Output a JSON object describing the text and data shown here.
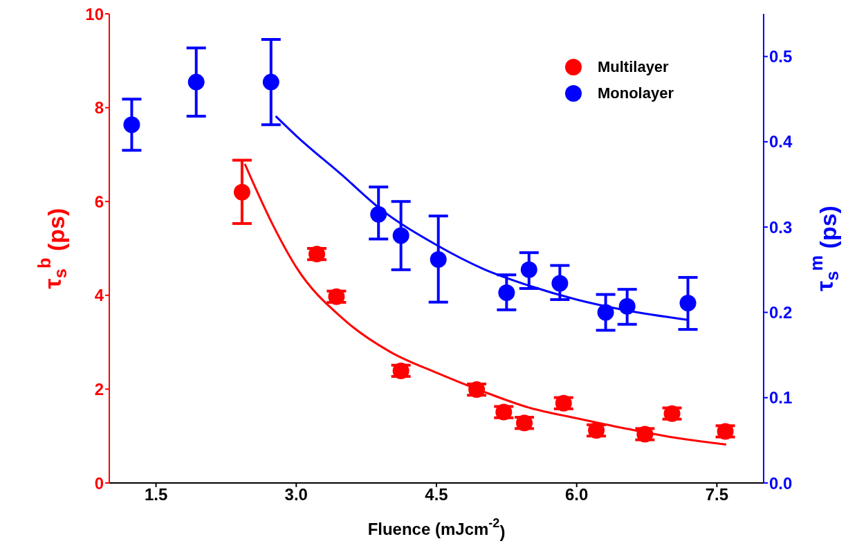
{
  "chart_data": {
    "type": "scatter",
    "xlabel": "Fluence  (mJcm$^{-2}$)",
    "ylabel": "τ$_{s}$$^{b}$ (ps)",
    "y2label": "τ$_{s}$$^{m}$ (ps)",
    "xlim": [
      1,
      8
    ],
    "xticks": [
      1.5,
      {
        "value": 3,
        "label": "3.0"
      },
      4.5,
      {
        "value": 6,
        "label": "6.0"
      },
      7.5
    ],
    "ylim": [
      0,
      10
    ],
    "yticks": [
      0,
      2,
      4,
      6,
      8,
      10
    ],
    "y2lim": [
      0,
      0.55
    ],
    "y2ticks": [
      {
        "value": 0,
        "label": "0.0"
      },
      0.1,
      0.2,
      0.3,
      0.4,
      0.5
    ],
    "legend": "top right",
    "grid": false,
    "series": [
      {
        "name": "Multilayer",
        "color": "#ff0000",
        "marker": "circle",
        "x": [
          2.42,
          3.22,
          3.43,
          4.12,
          4.93,
          5.22,
          5.44,
          5.86,
          6.21,
          6.73,
          7.02,
          7.59
        ],
        "values": [
          6.2,
          4.88,
          3.97,
          2.39,
          1.99,
          1.51,
          1.28,
          1.7,
          1.12,
          1.04,
          1.48,
          1.1
        ],
        "errors": [
          [
            5.53,
            6.88
          ],
          0.12,
          0.12,
          0.12,
          0.12,
          0.12,
          0.12,
          0.12,
          0.12,
          0.12,
          0.12,
          0.12
        ]
      },
      {
        "name": "Monolayer",
        "color": "#0000ff",
        "axis": "y2",
        "marker": "circle",
        "x": [
          1.24,
          1.93,
          2.73,
          3.88,
          4.12,
          4.52,
          5.25,
          5.49,
          5.82,
          6.31,
          6.54,
          7.19
        ],
        "values": [
          0.42,
          0.47,
          0.47,
          0.315,
          0.29,
          0.262,
          0.223,
          0.25,
          0.234,
          0.2,
          0.207,
          0.211
        ],
        "errors": [
          [
            0.39,
            0.45
          ],
          [
            0.43,
            0.51
          ],
          [
            0.42,
            0.52
          ],
          [
            0.286,
            0.347
          ],
          [
            0.25,
            0.33
          ],
          [
            0.212,
            0.313
          ],
          [
            0.203,
            0.244
          ],
          [
            0.228,
            0.27
          ],
          [
            0.215,
            0.255
          ],
          [
            0.179,
            0.221
          ],
          [
            0.186,
            0.227
          ],
          [
            0.18,
            0.241
          ]
        ]
      },
      {
        "type": "line",
        "color": "#ff0000",
        "x": [
          2.45,
          2.75,
          3.0,
          3.5,
          4.0,
          4.5,
          5.0,
          5.5,
          6.0,
          6.5,
          7.0,
          7.6
        ],
        "values": [
          6.8,
          5.5,
          4.6,
          3.5,
          2.8,
          2.35,
          1.95,
          1.6,
          1.38,
          1.17,
          0.98,
          0.82
        ]
      },
      {
        "type": "line",
        "color": "#0000ff",
        "axis": "y2",
        "x": [
          2.78,
          3.0,
          3.5,
          3.88,
          4.5,
          5.0,
          5.5,
          6.0,
          6.5,
          7.2
        ],
        "values": [
          0.43,
          0.407,
          0.36,
          0.323,
          0.279,
          0.251,
          0.231,
          0.215,
          0.203,
          0.191
        ]
      }
    ]
  }
}
